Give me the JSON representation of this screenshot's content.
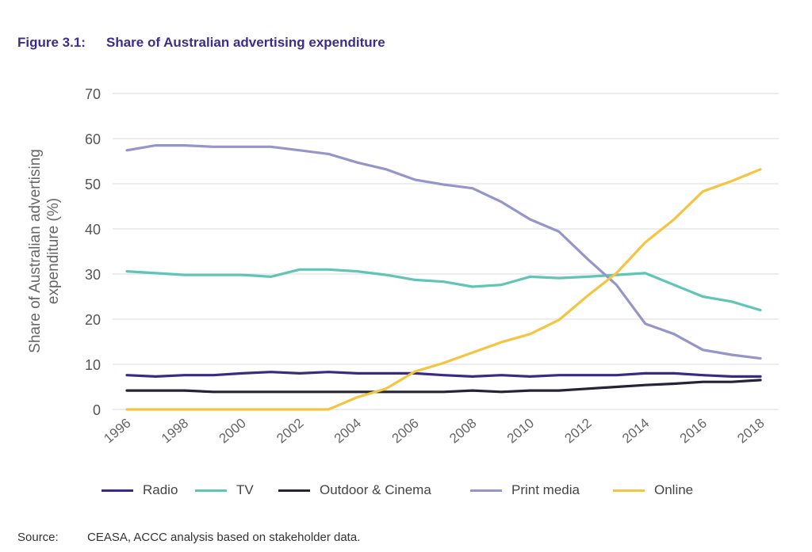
{
  "figure": {
    "number": "Figure 3.1:",
    "title": "Share of Australian advertising expenditure"
  },
  "source": {
    "label": "Source:",
    "text": "CEASA, ACCC analysis based on stakeholder data."
  },
  "chart_data": {
    "type": "line",
    "title": "Share of Australian advertising expenditure",
    "xlabel": "",
    "ylabel": "Share of Australian advertising expenditure (%)",
    "ylabel_lines": [
      "Share of Australian advertising",
      "expenditure (%)"
    ],
    "x": [
      1996,
      1997,
      1998,
      1999,
      2000,
      2001,
      2002,
      2003,
      2004,
      2005,
      2006,
      2007,
      2008,
      2009,
      2010,
      2011,
      2012,
      2013,
      2014,
      2015,
      2016,
      2017,
      2018
    ],
    "x_ticks": [
      "1996",
      "1998",
      "2000",
      "2002",
      "2004",
      "2006",
      "2008",
      "2010",
      "2012",
      "2014",
      "2016",
      "2018"
    ],
    "y_ticks": [
      "0",
      "10",
      "20",
      "30",
      "40",
      "50",
      "60",
      "70"
    ],
    "ylim": [
      0,
      70
    ],
    "xlim": [
      1996,
      2018
    ],
    "grid": true,
    "legend_position": "bottom",
    "series": [
      {
        "name": "Radio",
        "color": "#3b2a84",
        "values": [
          7.6,
          7.3,
          7.6,
          7.6,
          8.0,
          8.3,
          8.0,
          8.3,
          8.0,
          8.0,
          8.0,
          7.6,
          7.3,
          7.6,
          7.3,
          7.6,
          7.6,
          7.6,
          8.0,
          8.0,
          7.6,
          7.3,
          7.3
        ]
      },
      {
        "name": "TV",
        "color": "#5fc5b7",
        "values": [
          30.6,
          30.2,
          29.8,
          29.8,
          29.8,
          29.4,
          31.0,
          31.0,
          30.6,
          29.8,
          28.7,
          28.3,
          27.2,
          27.6,
          29.4,
          29.1,
          29.4,
          29.8,
          30.2,
          27.6,
          25.0,
          23.9,
          22.0
        ]
      },
      {
        "name": "Outdoor & Cinema",
        "color": "#262237",
        "values": [
          4.2,
          4.2,
          4.2,
          3.9,
          3.9,
          3.9,
          3.9,
          3.9,
          3.9,
          3.9,
          3.9,
          3.9,
          4.2,
          3.9,
          4.2,
          4.2,
          4.6,
          5.0,
          5.4,
          5.7,
          6.1,
          6.1,
          6.5
        ]
      },
      {
        "name": "Print media",
        "color": "#9496c9",
        "values": [
          57.4,
          58.5,
          58.5,
          58.2,
          58.2,
          58.2,
          57.4,
          56.6,
          54.7,
          53.2,
          50.9,
          49.8,
          49.0,
          46.0,
          42.1,
          39.4,
          33.3,
          27.6,
          19.0,
          16.7,
          13.2,
          12.1,
          11.3
        ]
      },
      {
        "name": "Online",
        "color": "#f4c542",
        "values": [
          0.0,
          0.0,
          0.0,
          0.0,
          0.0,
          0.0,
          0.0,
          0.0,
          2.7,
          4.6,
          8.4,
          10.3,
          12.6,
          14.9,
          16.7,
          19.8,
          25.2,
          30.2,
          37.0,
          42.1,
          48.3,
          50.6,
          53.2
        ]
      }
    ]
  }
}
